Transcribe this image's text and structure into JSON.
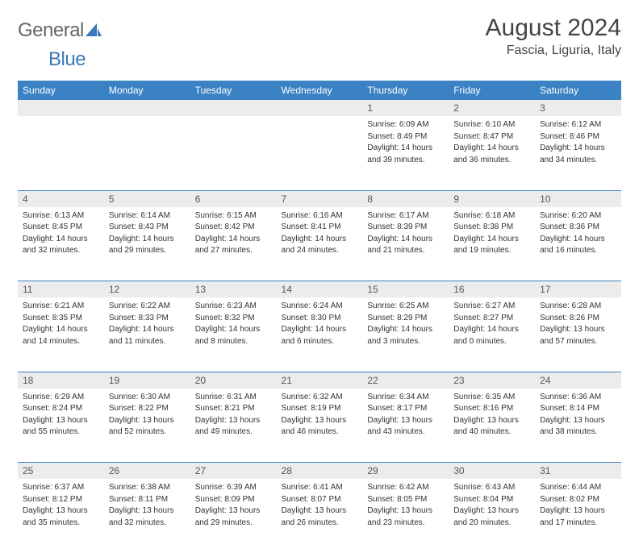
{
  "logo": {
    "text_gray": "General",
    "text_blue": "Blue"
  },
  "title": "August 2024",
  "location": "Fascia, Liguria, Italy",
  "colors": {
    "header_bg": "#3b82c4",
    "daynum_bg": "#ececec",
    "page_bg": "#ffffff",
    "text": "#333333",
    "logo_gray": "#666666",
    "logo_blue": "#3a7ab8"
  },
  "fonts": {
    "title_size": 30,
    "location_size": 16,
    "dayheader_size": 12,
    "body_size": 10
  },
  "day_headers": [
    "Sunday",
    "Monday",
    "Tuesday",
    "Wednesday",
    "Thursday",
    "Friday",
    "Saturday"
  ],
  "weeks": [
    [
      null,
      null,
      null,
      null,
      {
        "n": "1",
        "sr": "Sunrise: 6:09 AM",
        "ss": "Sunset: 8:49 PM",
        "d1": "Daylight: 14 hours",
        "d2": "and 39 minutes."
      },
      {
        "n": "2",
        "sr": "Sunrise: 6:10 AM",
        "ss": "Sunset: 8:47 PM",
        "d1": "Daylight: 14 hours",
        "d2": "and 36 minutes."
      },
      {
        "n": "3",
        "sr": "Sunrise: 6:12 AM",
        "ss": "Sunset: 8:46 PM",
        "d1": "Daylight: 14 hours",
        "d2": "and 34 minutes."
      }
    ],
    [
      {
        "n": "4",
        "sr": "Sunrise: 6:13 AM",
        "ss": "Sunset: 8:45 PM",
        "d1": "Daylight: 14 hours",
        "d2": "and 32 minutes."
      },
      {
        "n": "5",
        "sr": "Sunrise: 6:14 AM",
        "ss": "Sunset: 8:43 PM",
        "d1": "Daylight: 14 hours",
        "d2": "and 29 minutes."
      },
      {
        "n": "6",
        "sr": "Sunrise: 6:15 AM",
        "ss": "Sunset: 8:42 PM",
        "d1": "Daylight: 14 hours",
        "d2": "and 27 minutes."
      },
      {
        "n": "7",
        "sr": "Sunrise: 6:16 AM",
        "ss": "Sunset: 8:41 PM",
        "d1": "Daylight: 14 hours",
        "d2": "and 24 minutes."
      },
      {
        "n": "8",
        "sr": "Sunrise: 6:17 AM",
        "ss": "Sunset: 8:39 PM",
        "d1": "Daylight: 14 hours",
        "d2": "and 21 minutes."
      },
      {
        "n": "9",
        "sr": "Sunrise: 6:18 AM",
        "ss": "Sunset: 8:38 PM",
        "d1": "Daylight: 14 hours",
        "d2": "and 19 minutes."
      },
      {
        "n": "10",
        "sr": "Sunrise: 6:20 AM",
        "ss": "Sunset: 8:36 PM",
        "d1": "Daylight: 14 hours",
        "d2": "and 16 minutes."
      }
    ],
    [
      {
        "n": "11",
        "sr": "Sunrise: 6:21 AM",
        "ss": "Sunset: 8:35 PM",
        "d1": "Daylight: 14 hours",
        "d2": "and 14 minutes."
      },
      {
        "n": "12",
        "sr": "Sunrise: 6:22 AM",
        "ss": "Sunset: 8:33 PM",
        "d1": "Daylight: 14 hours",
        "d2": "and 11 minutes."
      },
      {
        "n": "13",
        "sr": "Sunrise: 6:23 AM",
        "ss": "Sunset: 8:32 PM",
        "d1": "Daylight: 14 hours",
        "d2": "and 8 minutes."
      },
      {
        "n": "14",
        "sr": "Sunrise: 6:24 AM",
        "ss": "Sunset: 8:30 PM",
        "d1": "Daylight: 14 hours",
        "d2": "and 6 minutes."
      },
      {
        "n": "15",
        "sr": "Sunrise: 6:25 AM",
        "ss": "Sunset: 8:29 PM",
        "d1": "Daylight: 14 hours",
        "d2": "and 3 minutes."
      },
      {
        "n": "16",
        "sr": "Sunrise: 6:27 AM",
        "ss": "Sunset: 8:27 PM",
        "d1": "Daylight: 14 hours",
        "d2": "and 0 minutes."
      },
      {
        "n": "17",
        "sr": "Sunrise: 6:28 AM",
        "ss": "Sunset: 8:26 PM",
        "d1": "Daylight: 13 hours",
        "d2": "and 57 minutes."
      }
    ],
    [
      {
        "n": "18",
        "sr": "Sunrise: 6:29 AM",
        "ss": "Sunset: 8:24 PM",
        "d1": "Daylight: 13 hours",
        "d2": "and 55 minutes."
      },
      {
        "n": "19",
        "sr": "Sunrise: 6:30 AM",
        "ss": "Sunset: 8:22 PM",
        "d1": "Daylight: 13 hours",
        "d2": "and 52 minutes."
      },
      {
        "n": "20",
        "sr": "Sunrise: 6:31 AM",
        "ss": "Sunset: 8:21 PM",
        "d1": "Daylight: 13 hours",
        "d2": "and 49 minutes."
      },
      {
        "n": "21",
        "sr": "Sunrise: 6:32 AM",
        "ss": "Sunset: 8:19 PM",
        "d1": "Daylight: 13 hours",
        "d2": "and 46 minutes."
      },
      {
        "n": "22",
        "sr": "Sunrise: 6:34 AM",
        "ss": "Sunset: 8:17 PM",
        "d1": "Daylight: 13 hours",
        "d2": "and 43 minutes."
      },
      {
        "n": "23",
        "sr": "Sunrise: 6:35 AM",
        "ss": "Sunset: 8:16 PM",
        "d1": "Daylight: 13 hours",
        "d2": "and 40 minutes."
      },
      {
        "n": "24",
        "sr": "Sunrise: 6:36 AM",
        "ss": "Sunset: 8:14 PM",
        "d1": "Daylight: 13 hours",
        "d2": "and 38 minutes."
      }
    ],
    [
      {
        "n": "25",
        "sr": "Sunrise: 6:37 AM",
        "ss": "Sunset: 8:12 PM",
        "d1": "Daylight: 13 hours",
        "d2": "and 35 minutes."
      },
      {
        "n": "26",
        "sr": "Sunrise: 6:38 AM",
        "ss": "Sunset: 8:11 PM",
        "d1": "Daylight: 13 hours",
        "d2": "and 32 minutes."
      },
      {
        "n": "27",
        "sr": "Sunrise: 6:39 AM",
        "ss": "Sunset: 8:09 PM",
        "d1": "Daylight: 13 hours",
        "d2": "and 29 minutes."
      },
      {
        "n": "28",
        "sr": "Sunrise: 6:41 AM",
        "ss": "Sunset: 8:07 PM",
        "d1": "Daylight: 13 hours",
        "d2": "and 26 minutes."
      },
      {
        "n": "29",
        "sr": "Sunrise: 6:42 AM",
        "ss": "Sunset: 8:05 PM",
        "d1": "Daylight: 13 hours",
        "d2": "and 23 minutes."
      },
      {
        "n": "30",
        "sr": "Sunrise: 6:43 AM",
        "ss": "Sunset: 8:04 PM",
        "d1": "Daylight: 13 hours",
        "d2": "and 20 minutes."
      },
      {
        "n": "31",
        "sr": "Sunrise: 6:44 AM",
        "ss": "Sunset: 8:02 PM",
        "d1": "Daylight: 13 hours",
        "d2": "and 17 minutes."
      }
    ]
  ]
}
